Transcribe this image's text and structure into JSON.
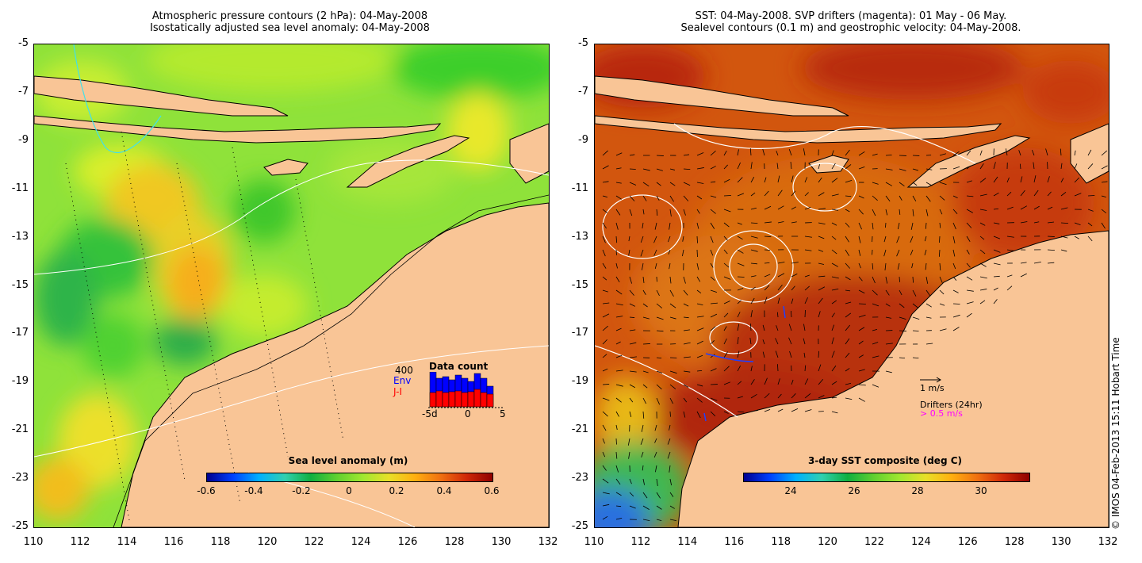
{
  "left_panel": {
    "title_line1": "Atmospheric pressure contours (2 hPa): 04-May-2008",
    "title_line2": "Isostatically adjusted sea level anomaly: 04-May-2008",
    "colorbar": {
      "title": "Sea level anomaly (m)",
      "ticks": [
        "-0.6",
        "-0.4",
        "-0.2",
        "0",
        "0.2",
        "0.4",
        "0.6"
      ],
      "range": [
        -0.6,
        0.6
      ]
    },
    "data_count": {
      "title": "Data count",
      "max_label": "400",
      "series_env": "Env",
      "series_ji": "J-I",
      "x_ticks": [
        "-5d",
        "0",
        "5"
      ],
      "env_color": "#0000ff",
      "ji_color": "#ff0000"
    }
  },
  "right_panel": {
    "title_line1": "SST: 04-May-2008. SVP drifters (magenta): 01 May - 06 May.",
    "title_line2": "Sealevel contours (0.1 m) and geostrophic velocity: 04-May-2008.",
    "colorbar": {
      "title": "3-day SST composite (deg C)",
      "ticks": [
        "24",
        "26",
        "28",
        "30"
      ],
      "range": [
        22.5,
        31.5
      ]
    },
    "velocity_scale": "1 m/s",
    "drifters_label": "Drifters (24hr)",
    "drifter_scale": "> 0.5 m/s",
    "drifter_color": "#ff00ff"
  },
  "axes": {
    "y_ticks": [
      "-5",
      "-7",
      "-9",
      "-11",
      "-13",
      "-15",
      "-17",
      "-19",
      "-21",
      "-23",
      "-25"
    ],
    "x_ticks": [
      "110",
      "112",
      "114",
      "116",
      "118",
      "120",
      "122",
      "124",
      "126",
      "128",
      "130",
      "132"
    ],
    "lon_range": [
      110,
      132
    ],
    "lat_range": [
      -25,
      -5
    ]
  },
  "credit": "© IMOS 04-Feb-2013 15:11 Hobart Time",
  "colors": {
    "land": "#f9c596",
    "anomaly_base": "#8fe23a",
    "sst_base": "#c84a0c"
  }
}
